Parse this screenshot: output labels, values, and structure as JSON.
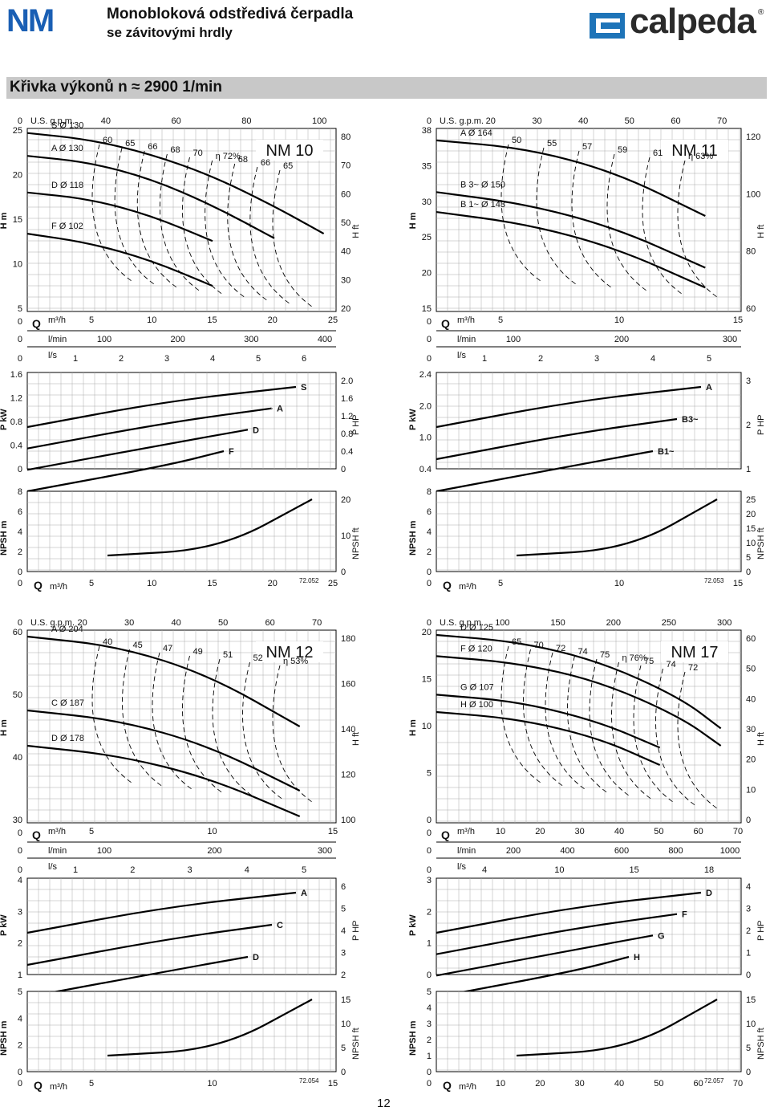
{
  "header": {
    "brand": "NM",
    "title": "Monobloková odstředivá čerpadla",
    "subtitle": "se závitovými hrdly",
    "logo_text": "calpeda",
    "logo_reg": "®"
  },
  "section_title": "Křivka výkonů n ≈ 2900 1/min",
  "page_number": "12",
  "charts": [
    {
      "model": "NM 10",
      "code": "72.052",
      "h_ticks_l": [
        "25",
        "20",
        "15",
        "10",
        "5"
      ],
      "h_ticks_r": [
        "80",
        "70",
        "60",
        "50",
        "40",
        "30",
        "20"
      ],
      "gpm_ticks": [
        "U.S. g.p.m.",
        "40",
        "60",
        "80",
        "100"
      ],
      "q_ticks": [
        "5",
        "10",
        "15",
        "20",
        "25"
      ],
      "lmin_ticks": [
        "100",
        "200",
        "300",
        "400"
      ],
      "ls_ticks": [
        "1",
        "2",
        "3",
        "4",
        "5",
        "6"
      ],
      "p_ticks_l": [
        "1.6",
        "1.2",
        "0.8",
        "0.4",
        "0"
      ],
      "p_ticks_r": [
        "2.0",
        "1.6",
        "1.2",
        "0.8",
        "0.4",
        "0"
      ],
      "npsh_ticks_l": [
        "8",
        "6",
        "4",
        "2",
        "0"
      ],
      "npsh_ticks_r": [
        "20",
        "10",
        "0"
      ],
      "nq_ticks": [
        "5",
        "10",
        "15",
        "20",
        "25"
      ],
      "curves": [
        {
          "label": "S",
          "dia": "Ø 130"
        },
        {
          "label": "A",
          "dia": "Ø 130"
        },
        {
          "label": "D",
          "dia": "Ø 118"
        },
        {
          "label": "F",
          "dia": "Ø 102"
        }
      ],
      "eff": [
        "60",
        "65",
        "66",
        "68",
        "70",
        "η 72%",
        "68",
        "66",
        "65"
      ],
      "power_labels": [
        "S",
        "A",
        "D",
        "F"
      ]
    },
    {
      "model": "NM 11",
      "code": "72.053",
      "h_ticks_l": [
        "38",
        "35",
        "30",
        "25",
        "20",
        "15"
      ],
      "h_ticks_r": [
        "120",
        "100",
        "80",
        "60"
      ],
      "gpm_ticks": [
        "U.S. g.p.m.",
        "20",
        "30",
        "40",
        "50",
        "60",
        "70"
      ],
      "q_ticks": [
        "5",
        "10",
        "15"
      ],
      "lmin_ticks": [
        "100",
        "200",
        "300"
      ],
      "ls_ticks": [
        "1",
        "2",
        "3",
        "4",
        "5"
      ],
      "p_ticks_l": [
        "2.4",
        "2.0",
        "1.0",
        "0.4"
      ],
      "p_ticks_r": [
        "3",
        "2",
        "1"
      ],
      "npsh_ticks_l": [
        "8",
        "6",
        "4",
        "2",
        "0"
      ],
      "npsh_ticks_r": [
        "25",
        "20",
        "15",
        "10",
        "5",
        "0"
      ],
      "nq_ticks": [
        "5",
        "10",
        "15"
      ],
      "curves": [
        {
          "label": "A",
          "dia": "Ø 164"
        },
        {
          "label": "B 3~",
          "dia": "Ø 150"
        },
        {
          "label": "B 1~",
          "dia": "Ø 143"
        }
      ],
      "eff": [
        "50",
        "55",
        "57",
        "59",
        "61",
        "η 63%"
      ],
      "power_labels": [
        "A",
        "B3~",
        "B1~"
      ]
    },
    {
      "model": "NM 12",
      "code": "72.054",
      "h_ticks_l": [
        "60",
        "50",
        "40",
        "30"
      ],
      "h_ticks_r": [
        "180",
        "160",
        "140",
        "120",
        "100"
      ],
      "gpm_ticks": [
        "U.S. g.p.m.",
        "20",
        "30",
        "40",
        "50",
        "60",
        "70"
      ],
      "q_ticks": [
        "5",
        "10",
        "15"
      ],
      "lmin_ticks": [
        "100",
        "200",
        "300"
      ],
      "ls_ticks": [
        "1",
        "2",
        "3",
        "4",
        "5"
      ],
      "p_ticks_l": [
        "4",
        "3",
        "2",
        "1"
      ],
      "p_ticks_r": [
        "6",
        "5",
        "4",
        "3",
        "2"
      ],
      "npsh_ticks_l": [
        "5",
        "4",
        "2",
        "0"
      ],
      "npsh_ticks_r": [
        "15",
        "10",
        "5",
        "0"
      ],
      "nq_ticks": [
        "5",
        "10",
        "15"
      ],
      "curves": [
        {
          "label": "A",
          "dia": "Ø 204"
        },
        {
          "label": "C",
          "dia": "Ø 187"
        },
        {
          "label": "D",
          "dia": "Ø 178"
        }
      ],
      "eff": [
        "40",
        "45",
        "47",
        "49",
        "51",
        "52",
        "η 53%"
      ],
      "power_labels": [
        "A",
        "C",
        "D"
      ]
    },
    {
      "model": "NM 17",
      "code": "72.057",
      "h_ticks_l": [
        "20",
        "15",
        "10",
        "5",
        "0"
      ],
      "h_ticks_r": [
        "60",
        "50",
        "40",
        "30",
        "20",
        "10",
        "0"
      ],
      "gpm_ticks": [
        "U.S. g.p.m.",
        "100",
        "150",
        "200",
        "250",
        "300"
      ],
      "q_ticks": [
        "10",
        "20",
        "30",
        "40",
        "50",
        "60",
        "70"
      ],
      "lmin_ticks": [
        "200",
        "400",
        "600",
        "800",
        "1000"
      ],
      "ls_ticks": [
        "4",
        "10",
        "15",
        "18"
      ],
      "p_ticks_l": [
        "3",
        "2",
        "1",
        "0"
      ],
      "p_ticks_r": [
        "4",
        "3",
        "2",
        "1",
        "0"
      ],
      "npsh_ticks_l": [
        "5",
        "4",
        "3",
        "2",
        "1",
        "0"
      ],
      "npsh_ticks_r": [
        "15",
        "10",
        "5",
        "0"
      ],
      "nq_ticks": [
        "10",
        "20",
        "30",
        "40",
        "50",
        "60",
        "70"
      ],
      "curves": [
        {
          "label": "D",
          "dia": "Ø 125"
        },
        {
          "label": "F",
          "dia": "Ø 120"
        },
        {
          "label": "G",
          "dia": "Ø 107"
        },
        {
          "label": "H",
          "dia": "Ø 100"
        }
      ],
      "eff": [
        "65",
        "70",
        "72",
        "74",
        "75",
        "η 76%",
        "75",
        "74",
        "72"
      ],
      "power_labels": [
        "D",
        "F",
        "G",
        "H"
      ]
    }
  ],
  "axis_text": {
    "h_m": "H m",
    "h_ft": "H ft",
    "q": "Q",
    "m3h": "m³/h",
    "lmin": "l/min",
    "ls": "l/s",
    "p_kw": "P kW",
    "p_hp": "P HP",
    "npsh_m": "NPSH m",
    "npsh_ft": "NPSH ft",
    "zero": "0"
  },
  "chart_data": [
    {
      "type": "line",
      "title": "NM 10",
      "xlabel": "Q m³/h",
      "ylabel": "H m",
      "xlim": [
        0,
        25
      ],
      "ylim": [
        5,
        25
      ],
      "series": [
        {
          "name": "S Ø 130",
          "x": [
            0,
            5,
            10,
            15,
            20,
            24
          ],
          "y": [
            24.5,
            23.8,
            22.2,
            19.8,
            16.5,
            13.5
          ]
        },
        {
          "name": "A Ø 130",
          "x": [
            0,
            5,
            10,
            15,
            20
          ],
          "y": [
            22,
            21.3,
            19.5,
            16.6,
            13
          ]
        },
        {
          "name": "D Ø 118",
          "x": [
            0,
            5,
            10,
            15
          ],
          "y": [
            18,
            17.3,
            15.5,
            12.7
          ]
        },
        {
          "name": "F Ø 102",
          "x": [
            0,
            5,
            10,
            15
          ],
          "y": [
            13.5,
            12.5,
            10.6,
            7.8
          ]
        }
      ]
    },
    {
      "type": "line",
      "title": "NM 11",
      "xlabel": "Q m³/h",
      "ylabel": "H m",
      "xlim": [
        0,
        17
      ],
      "ylim": [
        15,
        38
      ],
      "series": [
        {
          "name": "A Ø 164",
          "x": [
            0,
            5,
            10,
            15
          ],
          "y": [
            36.5,
            35.5,
            32.5,
            27
          ]
        },
        {
          "name": "B 3~ Ø 150",
          "x": [
            0,
            5,
            10,
            15
          ],
          "y": [
            30,
            28.5,
            25.5,
            20.5
          ]
        },
        {
          "name": "B 1~ Ø 143",
          "x": [
            0,
            5,
            10,
            15
          ],
          "y": [
            27.5,
            26,
            23,
            18
          ]
        }
      ]
    },
    {
      "type": "line",
      "title": "NM 12",
      "xlabel": "Q m³/h",
      "ylabel": "H m",
      "xlim": [
        0,
        17
      ],
      "ylim": [
        30,
        60
      ],
      "series": [
        {
          "name": "A Ø 204",
          "x": [
            0,
            5,
            10,
            15
          ],
          "y": [
            59,
            57.5,
            53,
            45
          ]
        },
        {
          "name": "C Ø 187",
          "x": [
            0,
            5,
            10,
            15
          ],
          "y": [
            47.5,
            46,
            42,
            35
          ]
        },
        {
          "name": "D Ø 178",
          "x": [
            0,
            5,
            10,
            15
          ],
          "y": [
            42,
            40.5,
            37,
            31
          ]
        }
      ]
    },
    {
      "type": "line",
      "title": "NM 17",
      "xlabel": "Q m³/h",
      "ylabel": "H m",
      "xlim": [
        0,
        75
      ],
      "ylim": [
        0,
        20
      ],
      "series": [
        {
          "name": "D Ø 125",
          "x": [
            0,
            20,
            40,
            60,
            70
          ],
          "y": [
            19.5,
            18.8,
            16.8,
            13,
            9.8
          ]
        },
        {
          "name": "F Ø 120",
          "x": [
            0,
            20,
            40,
            60,
            70
          ],
          "y": [
            17.3,
            16.6,
            14.7,
            11,
            8
          ]
        },
        {
          "name": "G Ø 107",
          "x": [
            0,
            20,
            40,
            55
          ],
          "y": [
            13.3,
            12.6,
            10.5,
            7.8
          ]
        },
        {
          "name": "H Ø 100",
          "x": [
            0,
            20,
            40,
            55
          ],
          "y": [
            11.5,
            10.8,
            8.8,
            6
          ]
        }
      ]
    }
  ]
}
